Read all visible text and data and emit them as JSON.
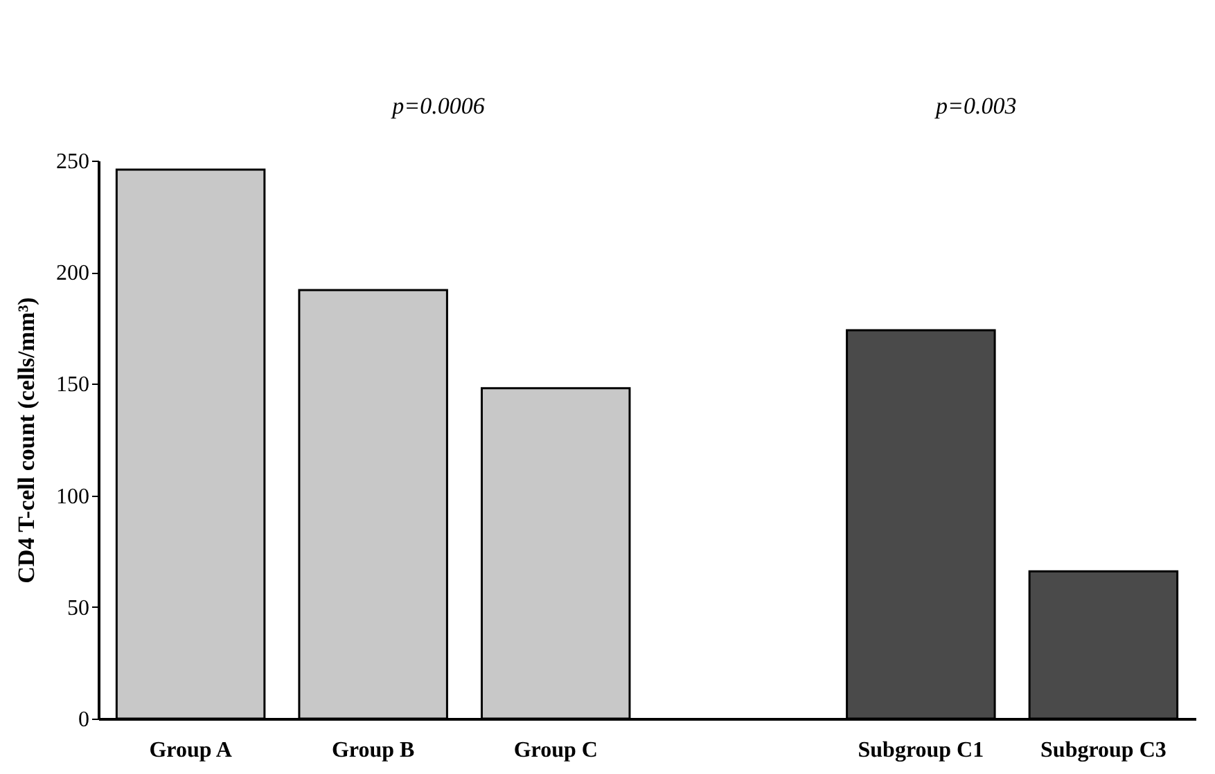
{
  "chart_data": {
    "type": "bar",
    "ylabel": "CD4 T-cell count (cells/mm³)",
    "categories": [
      "Group A",
      "Group B",
      "Group C",
      null,
      "Subgroup C1",
      "Subgroup C3"
    ],
    "values": [
      246,
      192,
      148,
      null,
      174,
      66
    ],
    "colors": [
      "#c8c8c8",
      "#c8c8c8",
      "#c8c8c8",
      "#c8c8c8",
      "#4a4a4a",
      "#4a4a4a"
    ],
    "ylim": [
      0,
      250
    ],
    "yticks": [
      0,
      50,
      100,
      150,
      200,
      250
    ],
    "grid": false,
    "annotations": [
      "p=0.0006",
      "p=0.003"
    ]
  }
}
